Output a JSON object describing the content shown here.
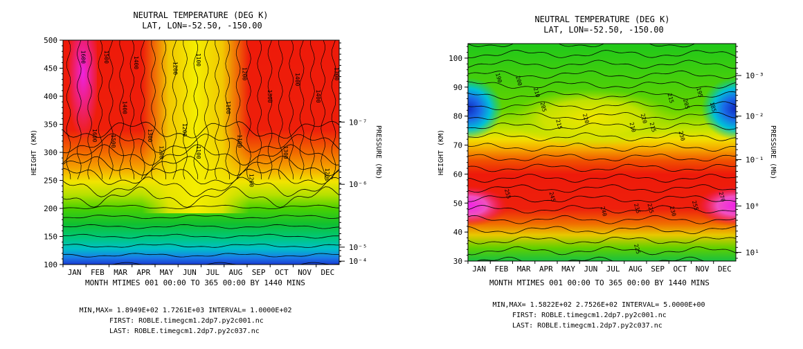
{
  "chart_data": [
    {
      "type": "heatmap",
      "title": "NEUTRAL TEMPERATURE (DEG K)",
      "subtitle": "LAT, LON=-52.50,  -150.00",
      "ylabel": "HEIGHT (KM)",
      "y2label": "PRESSURE (Mb)",
      "xlabel": "MONTH MTIMES 001 00:00 TO 365 00:00 BY 1440 MINS",
      "x_ticks": [
        "JAN",
        "FEB",
        "MAR",
        "APR",
        "MAY",
        "JUN",
        "JUL",
        "AUG",
        "SEP",
        "OCT",
        "NOV",
        "DEC"
      ],
      "ylim": [
        100,
        500
      ],
      "y_ticks": [
        100,
        150,
        200,
        250,
        300,
        350,
        400,
        450,
        500
      ],
      "y2_ticks": [
        {
          "height": 354,
          "label": "10⁻⁷"
        },
        {
          "height": 243,
          "label": "10⁻⁶"
        },
        {
          "height": 131,
          "label": "10⁻⁵"
        },
        {
          "height": 106,
          "label": "10⁻⁴"
        }
      ],
      "contour_interval": 100,
      "contour_labels": [
        {
          "month": 0.3,
          "height": 470,
          "value": "1600"
        },
        {
          "month": 0.8,
          "height": 330,
          "value": "1600"
        },
        {
          "month": 1.3,
          "height": 470,
          "value": "1500"
        },
        {
          "month": 1.6,
          "height": 320,
          "value": "1500"
        },
        {
          "month": 2.1,
          "height": 380,
          "value": "1400"
        },
        {
          "month": 2.6,
          "height": 460,
          "value": "1400"
        },
        {
          "month": 3.2,
          "height": 330,
          "value": "1300"
        },
        {
          "month": 3.7,
          "height": 300,
          "value": "1200"
        },
        {
          "month": 4.3,
          "height": 450,
          "value": "1200"
        },
        {
          "month": 4.7,
          "height": 340,
          "value": "1200"
        },
        {
          "month": 5.3,
          "height": 465,
          "value": "1100"
        },
        {
          "month": 5.3,
          "height": 300,
          "value": "1100"
        },
        {
          "month": 6.6,
          "height": 380,
          "value": "1100"
        },
        {
          "month": 7.1,
          "height": 320,
          "value": "1100"
        },
        {
          "month": 7.3,
          "height": 440,
          "value": "1200"
        },
        {
          "month": 7.6,
          "height": 250,
          "value": "1200"
        },
        {
          "month": 8.4,
          "height": 400,
          "value": "1300"
        },
        {
          "month": 9.1,
          "height": 300,
          "value": "1300"
        },
        {
          "month": 9.6,
          "height": 430,
          "value": "1400"
        },
        {
          "month": 10.5,
          "height": 400,
          "value": "1400"
        },
        {
          "month": 10.9,
          "height": 260,
          "value": "1200"
        },
        {
          "month": 11.3,
          "height": 440,
          "value": "1300"
        }
      ],
      "footer": {
        "minmax": "MIN,MAX=  1.8949E+02  1.7261E+03 INTERVAL=  1.0000E+02",
        "first": "FIRST: ROBLE.timegcm1.2dp7.py2c001.nc",
        "last": "LAST:  ROBLE.timegcm1.2dp7.py2c037.nc"
      }
    },
    {
      "type": "heatmap",
      "title": "NEUTRAL TEMPERATURE (DEG K)",
      "subtitle": "LAT, LON=-52.50,  -150.00",
      "ylabel": "HEIGHT (KM)",
      "y2label": "PRESSURE (Mb)",
      "xlabel": "MONTH MTIMES 001 00:00 TO 365 00:00 BY 1440 MINS",
      "x_ticks": [
        "JAN",
        "FEB",
        "MAR",
        "APR",
        "MAY",
        "JUN",
        "JUL",
        "AUG",
        "SEP",
        "OCT",
        "NOV",
        "DEC"
      ],
      "ylim": [
        30,
        105
      ],
      "y_ticks": [
        30,
        40,
        50,
        60,
        70,
        80,
        90,
        100
      ],
      "y2_ticks": [
        {
          "height": 94,
          "label": "10⁻³"
        },
        {
          "height": 80,
          "label": "10⁻²"
        },
        {
          "height": 65,
          "label": "10⁻¹"
        },
        {
          "height": 49,
          "label": "10⁰"
        },
        {
          "height": 33,
          "label": "10¹"
        }
      ],
      "contour_interval": 5,
      "contour_labels": [
        {
          "month": 0.8,
          "height": 93,
          "value": "190"
        },
        {
          "month": 1.7,
          "height": 92,
          "value": "200"
        },
        {
          "month": 2.5,
          "height": 88,
          "value": "210"
        },
        {
          "month": 2.8,
          "height": 83,
          "value": "205"
        },
        {
          "month": 3.5,
          "height": 77,
          "value": "215"
        },
        {
          "month": 4.7,
          "height": 79,
          "value": "220"
        },
        {
          "month": 6.8,
          "height": 76,
          "value": "210"
        },
        {
          "month": 7.3,
          "height": 79,
          "value": "220"
        },
        {
          "month": 7.7,
          "height": 76,
          "value": "215"
        },
        {
          "month": 8.5,
          "height": 86,
          "value": "215"
        },
        {
          "month": 9.2,
          "height": 84,
          "value": "205"
        },
        {
          "month": 9.8,
          "height": 88,
          "value": "195"
        },
        {
          "month": 10.4,
          "height": 83,
          "value": "185"
        },
        {
          "month": 1.2,
          "height": 53,
          "value": "255"
        },
        {
          "month": 3.2,
          "height": 52,
          "value": "245"
        },
        {
          "month": 5.5,
          "height": 47,
          "value": "240"
        },
        {
          "month": 7.0,
          "height": 48,
          "value": "235"
        },
        {
          "month": 7.6,
          "height": 48,
          "value": "225"
        },
        {
          "month": 8.6,
          "height": 47,
          "value": "230"
        },
        {
          "month": 9.6,
          "height": 49,
          "value": "255"
        },
        {
          "month": 10.8,
          "height": 52,
          "value": "270"
        },
        {
          "month": 7.0,
          "height": 34,
          "value": "225"
        },
        {
          "month": 9.0,
          "height": 73,
          "value": "230"
        }
      ],
      "footer": {
        "minmax": "MIN,MAX=  1.5822E+02  2.7526E+02 INTERVAL=  5.0000E+00",
        "first": "FIRST: ROBLE.timegcm1.2dp7.py2c001.nc",
        "last": "LAST:  ROBLE.timegcm1.2dp7.py2c037.nc"
      }
    }
  ]
}
